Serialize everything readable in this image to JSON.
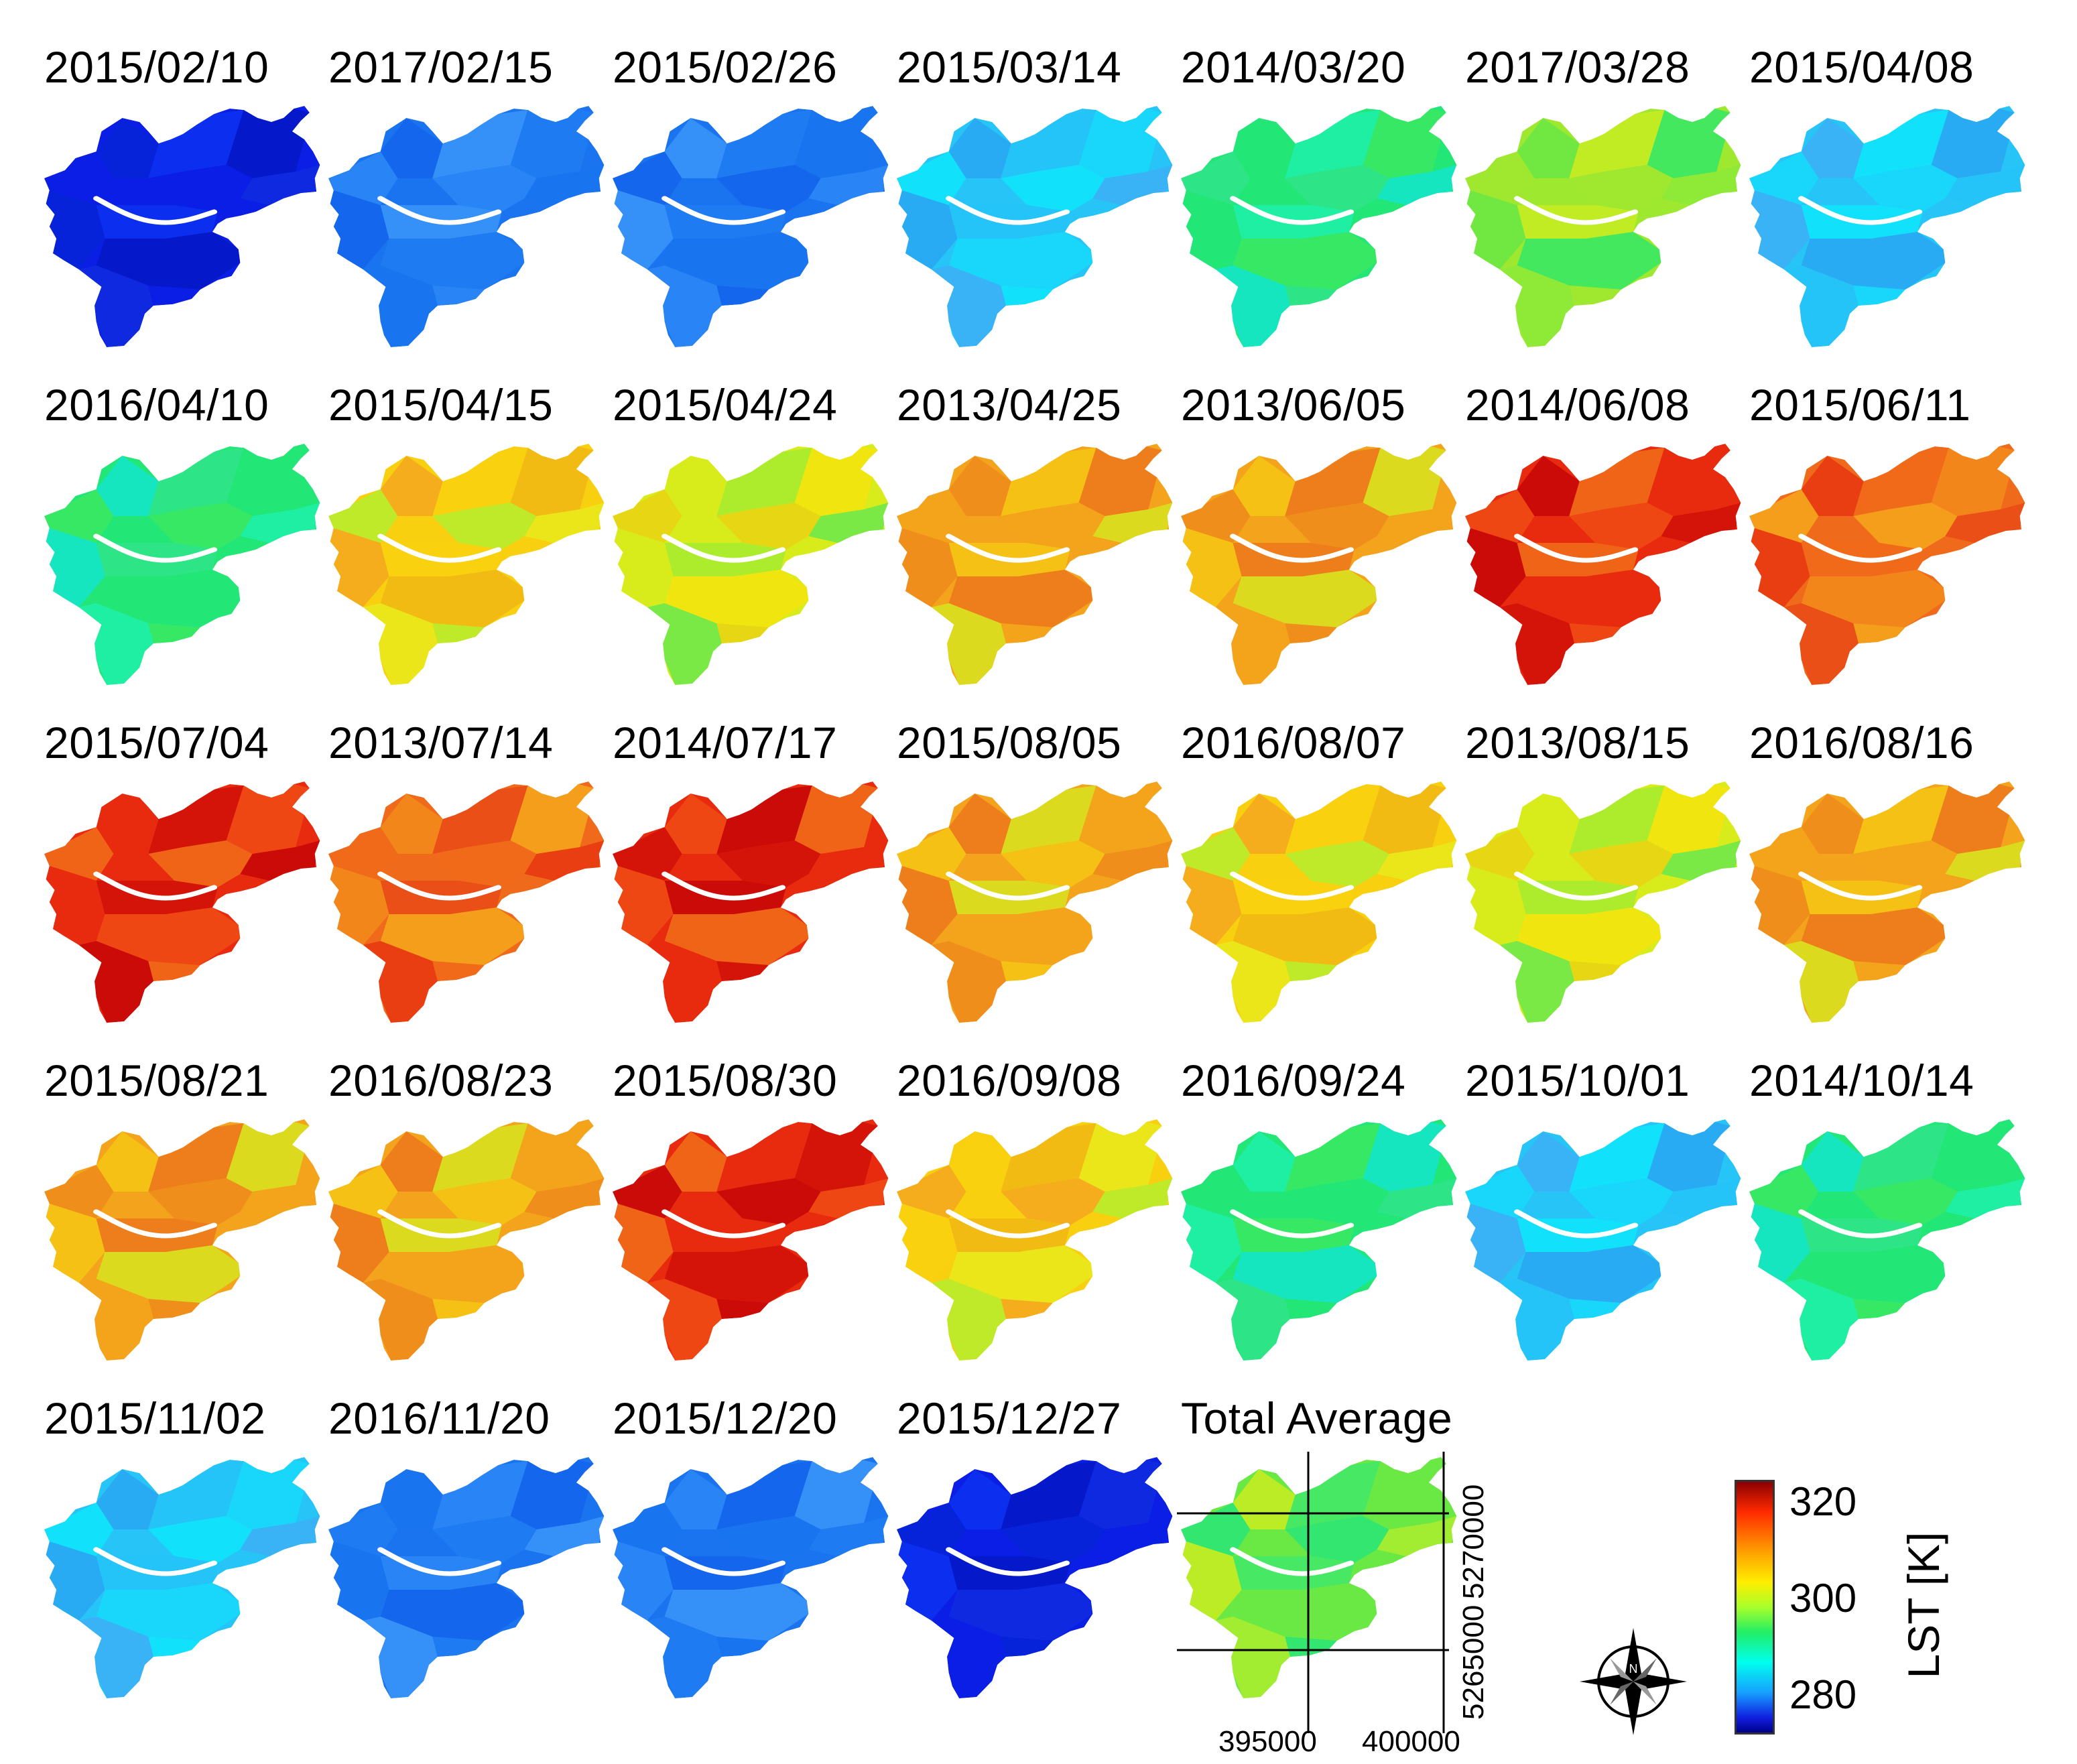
{
  "panels": [
    {
      "label": "2015/02/10",
      "tone": "very-cold"
    },
    {
      "label": "2017/02/15",
      "tone": "cold"
    },
    {
      "label": "2015/02/26",
      "tone": "cold"
    },
    {
      "label": "2015/03/14",
      "tone": "cool"
    },
    {
      "label": "2014/03/20",
      "tone": "mild-green"
    },
    {
      "label": "2017/03/28",
      "tone": "green-yellow"
    },
    {
      "label": "2015/04/08",
      "tone": "cool"
    },
    {
      "label": "2016/04/10",
      "tone": "mild-green"
    },
    {
      "label": "2015/04/15",
      "tone": "warm-yellow"
    },
    {
      "label": "2015/04/24",
      "tone": "yellow-green"
    },
    {
      "label": "2013/04/25",
      "tone": "warm-orange"
    },
    {
      "label": "2013/06/05",
      "tone": "warm-orange"
    },
    {
      "label": "2014/06/08",
      "tone": "hot"
    },
    {
      "label": "2015/06/11",
      "tone": "hot-orange"
    },
    {
      "label": "2015/07/04",
      "tone": "hot"
    },
    {
      "label": "2013/07/14",
      "tone": "hot-orange"
    },
    {
      "label": "2014/07/17",
      "tone": "hot"
    },
    {
      "label": "2015/08/05",
      "tone": "warm-orange"
    },
    {
      "label": "2016/08/07",
      "tone": "warm-yellow"
    },
    {
      "label": "2013/08/15",
      "tone": "yellow-green"
    },
    {
      "label": "2016/08/16",
      "tone": "warm-orange"
    },
    {
      "label": "2015/08/21",
      "tone": "warm-orange"
    },
    {
      "label": "2016/08/23",
      "tone": "warm-orange"
    },
    {
      "label": "2015/08/30",
      "tone": "hot"
    },
    {
      "label": "2016/09/08",
      "tone": "warm-yellow"
    },
    {
      "label": "2016/09/24",
      "tone": "mild-green"
    },
    {
      "label": "2015/10/01",
      "tone": "cool"
    },
    {
      "label": "2014/10/14",
      "tone": "mild-green"
    },
    {
      "label": "2015/11/02",
      "tone": "cool"
    },
    {
      "label": "2016/11/20",
      "tone": "cold"
    },
    {
      "label": "2015/12/20",
      "tone": "cold"
    },
    {
      "label": "2015/12/27",
      "tone": "very-cold"
    },
    {
      "label": "Total Average",
      "tone": "average"
    }
  ],
  "legend": {
    "title": "LST [K]",
    "ticks": [
      "320",
      "300",
      "280"
    ],
    "min": 273,
    "max": 320
  },
  "coordinates": {
    "x_labels": [
      "395000",
      "400000"
    ],
    "y_labels": [
      "5270000",
      "5265000"
    ]
  },
  "compass": {
    "north_label": "N",
    "icon": "compass-rose-icon"
  },
  "tones": {
    "very-cold": [
      "#0a1ee6",
      "#0624d8",
      "#0b30f0",
      "#0418c8",
      "#0f2ae0"
    ],
    "cold": [
      "#1a74f0",
      "#2b86f5",
      "#1466ec",
      "#3894f7",
      "#1f7cf2"
    ],
    "cool": [
      "#26c4f7",
      "#18d8fb",
      "#3cb0f5",
      "#10e4fa",
      "#2aa8f2"
    ],
    "mild-green": [
      "#22e676",
      "#1ff0a8",
      "#3ae864",
      "#14e6c8",
      "#2fe48a"
    ],
    "green-yellow": [
      "#9ee830",
      "#6ae844",
      "#c4ec24",
      "#3ae864",
      "#8cea38"
    ],
    "yellow-green": [
      "#d8ec1c",
      "#a8ec30",
      "#f4e410",
      "#70e84a",
      "#e8d414"
    ],
    "warm-yellow": [
      "#f8d010",
      "#f0b814",
      "#e8e81c",
      "#b8ec2c",
      "#f4a820"
    ],
    "warm-orange": [
      "#f4a41c",
      "#f08c1c",
      "#f4c414",
      "#ec7a1c",
      "#d8e020"
    ],
    "hot-orange": [
      "#ef6a1a",
      "#f38a1c",
      "#e84c16",
      "#f4a41c",
      "#e83a12"
    ],
    "hot": [
      "#e82a0e",
      "#d21208",
      "#ef4a14",
      "#c80808",
      "#f06a18"
    ],
    "average": [
      "#6ae844",
      "#a8ec30",
      "#2ee676",
      "#c4ec24",
      "#44e868"
    ]
  }
}
